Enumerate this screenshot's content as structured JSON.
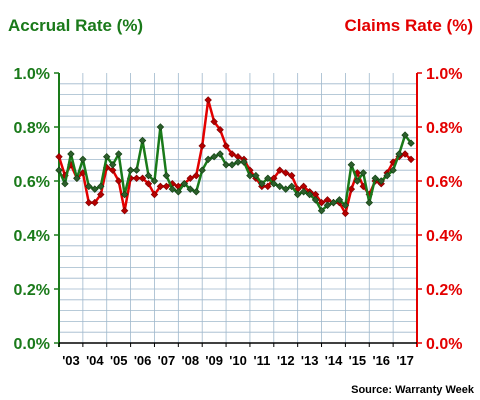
{
  "chart_data": {
    "type": "line",
    "left_title": "Accrual Rate (%)",
    "right_title": "Claims Rate (%)",
    "source": "Source: Warranty Week",
    "y_ticks": [
      "0.0%",
      "0.2%",
      "0.4%",
      "0.6%",
      "0.8%",
      "1.0%"
    ],
    "x_ticks": [
      "'03",
      "'04",
      "'05",
      "'06",
      "'07",
      "'08",
      "'09",
      "'10",
      "'11",
      "'12",
      "'13",
      "'14",
      "'15",
      "'16",
      "'17"
    ],
    "ylim": [
      0,
      1.0
    ],
    "x_range": [
      2003.0,
      2018.0
    ],
    "grid": true,
    "colors": {
      "accrual": "#1a7a1a",
      "claims": "#e30000",
      "grid": "#9fb8cc"
    },
    "series": [
      {
        "name": "Accrual Rate (%)",
        "axis": "left",
        "x": [
          2003.0,
          2003.25,
          2003.5,
          2003.75,
          2004.0,
          2004.25,
          2004.5,
          2004.75,
          2005.0,
          2005.25,
          2005.5,
          2005.75,
          2006.0,
          2006.25,
          2006.5,
          2006.75,
          2007.0,
          2007.25,
          2007.5,
          2007.75,
          2008.0,
          2008.25,
          2008.5,
          2008.75,
          2009.0,
          2009.25,
          2009.5,
          2009.75,
          2010.0,
          2010.25,
          2010.5,
          2010.75,
          2011.0,
          2011.25,
          2011.5,
          2011.75,
          2012.0,
          2012.25,
          2012.5,
          2012.75,
          2013.0,
          2013.25,
          2013.5,
          2013.75,
          2014.0,
          2014.25,
          2014.5,
          2014.75,
          2015.0,
          2015.25,
          2015.5,
          2015.75,
          2016.0,
          2016.25,
          2016.5,
          2016.75,
          2017.0,
          2017.25,
          2017.5,
          2017.75
        ],
        "values": [
          0.64,
          0.59,
          0.7,
          0.61,
          0.68,
          0.58,
          0.57,
          0.58,
          0.69,
          0.66,
          0.7,
          0.55,
          0.64,
          0.64,
          0.75,
          0.62,
          0.6,
          0.8,
          0.62,
          0.57,
          0.56,
          0.59,
          0.57,
          0.56,
          0.64,
          0.68,
          0.69,
          0.7,
          0.66,
          0.66,
          0.67,
          0.67,
          0.62,
          0.62,
          0.59,
          0.61,
          0.59,
          0.58,
          0.57,
          0.58,
          0.55,
          0.56,
          0.55,
          0.53,
          0.49,
          0.51,
          0.52,
          0.53,
          0.51,
          0.66,
          0.6,
          0.63,
          0.52,
          0.61,
          0.6,
          0.62,
          0.64,
          0.7,
          0.77,
          0.74
        ]
      },
      {
        "name": "Claims Rate (%)",
        "axis": "right",
        "x": [
          2003.0,
          2003.25,
          2003.5,
          2003.75,
          2004.0,
          2004.25,
          2004.5,
          2004.75,
          2005.0,
          2005.25,
          2005.5,
          2005.75,
          2006.0,
          2006.25,
          2006.5,
          2006.75,
          2007.0,
          2007.25,
          2007.5,
          2007.75,
          2008.0,
          2008.25,
          2008.5,
          2008.75,
          2009.0,
          2009.25,
          2009.5,
          2009.75,
          2010.0,
          2010.25,
          2010.5,
          2010.75,
          2011.0,
          2011.25,
          2011.5,
          2011.75,
          2012.0,
          2012.25,
          2012.5,
          2012.75,
          2013.0,
          2013.25,
          2013.5,
          2013.75,
          2014.0,
          2014.25,
          2014.5,
          2014.75,
          2015.0,
          2015.25,
          2015.5,
          2015.75,
          2016.0,
          2016.25,
          2016.5,
          2016.75,
          2017.0,
          2017.25,
          2017.5,
          2017.75
        ],
        "values": [
          0.69,
          0.62,
          0.66,
          0.61,
          0.63,
          0.52,
          0.52,
          0.55,
          0.65,
          0.64,
          0.6,
          0.49,
          0.61,
          0.61,
          0.61,
          0.59,
          0.55,
          0.58,
          0.58,
          0.59,
          0.58,
          0.59,
          0.61,
          0.62,
          0.73,
          0.9,
          0.82,
          0.79,
          0.73,
          0.7,
          0.69,
          0.68,
          0.64,
          0.61,
          0.58,
          0.58,
          0.61,
          0.64,
          0.63,
          0.62,
          0.57,
          0.58,
          0.56,
          0.55,
          0.52,
          0.53,
          0.52,
          0.52,
          0.48,
          0.57,
          0.63,
          0.58,
          0.55,
          0.6,
          0.59,
          0.63,
          0.67,
          0.69,
          0.7,
          0.68
        ]
      }
    ]
  }
}
